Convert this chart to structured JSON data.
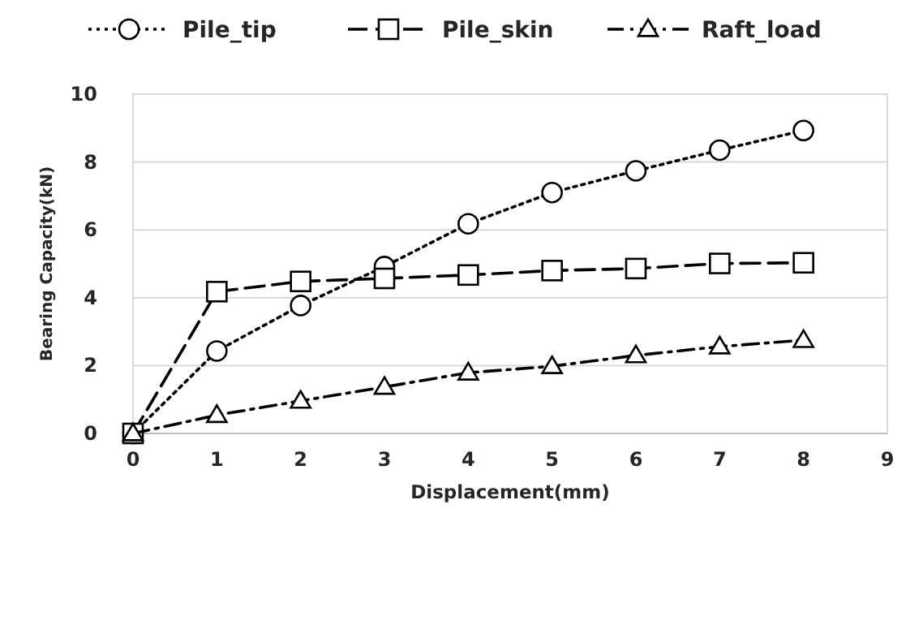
{
  "chart_data": {
    "type": "line",
    "xlabel": "Displacement(mm)",
    "ylabel": "Bearing Capacity(kN)",
    "x": [
      0,
      1,
      2,
      3,
      4,
      5,
      6,
      7,
      8
    ],
    "series": [
      {
        "name": "Pile_tip",
        "color": "#000000",
        "marker": "circle",
        "line_style": "dotted",
        "values": [
          0,
          2.43,
          3.77,
          4.92,
          6.18,
          7.1,
          7.74,
          8.35,
          8.93
        ]
      },
      {
        "name": "Pile_skin",
        "color": "#000000",
        "marker": "square",
        "line_style": "dashed",
        "values": [
          0,
          4.18,
          4.48,
          4.57,
          4.67,
          4.8,
          4.86,
          5.01,
          5.03
        ]
      },
      {
        "name": "Raft_load",
        "color": "#000000",
        "marker": "triangle",
        "line_style": "dashdot",
        "values": [
          0,
          0.54,
          0.96,
          1.37,
          1.79,
          1.98,
          2.3,
          2.56,
          2.75
        ]
      }
    ],
    "xlim": [
      0,
      9
    ],
    "xticks": [
      0,
      1,
      2,
      3,
      4,
      5,
      6,
      7,
      8,
      9
    ],
    "ylim": [
      0,
      10
    ],
    "yticks": [
      0,
      2,
      4,
      6,
      8,
      10
    ],
    "grid": "y",
    "legend": "top"
  }
}
